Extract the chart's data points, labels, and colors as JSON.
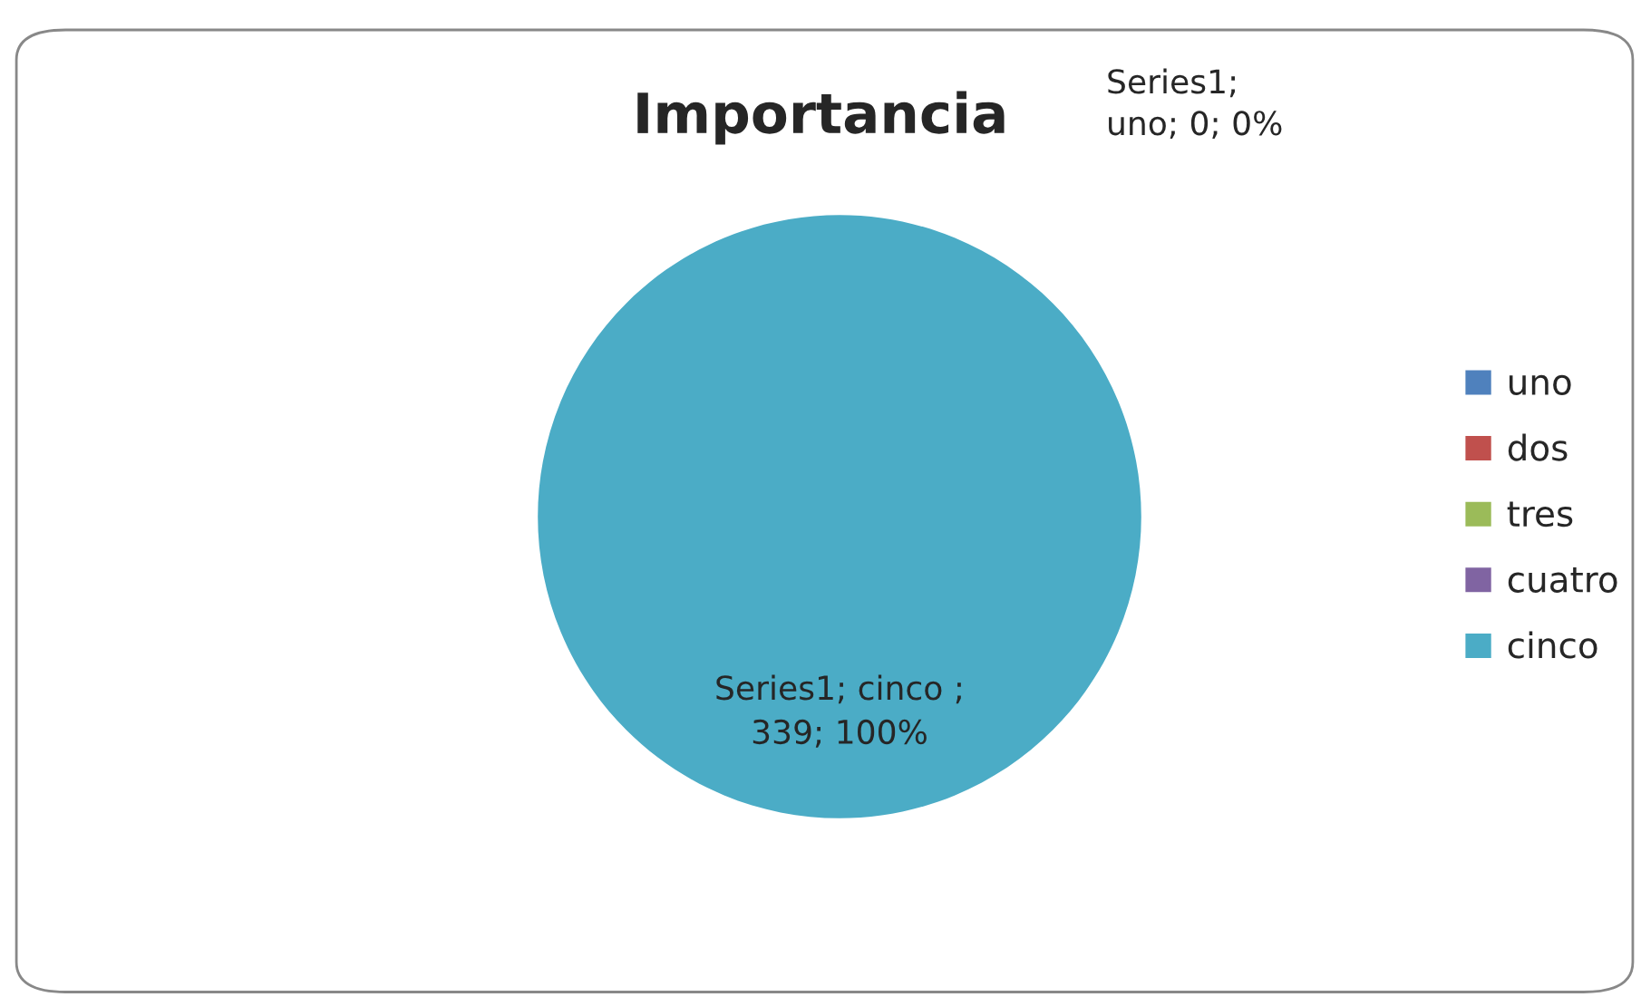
{
  "chart_data": {
    "type": "pie",
    "title": "Importancia",
    "categories": [
      "uno",
      "dos",
      "tres",
      "cuatro",
      "cinco"
    ],
    "values": [
      0,
      0,
      0,
      0,
      339
    ],
    "colors": [
      "#4f81bd",
      "#c0504d",
      "#9bbb59",
      "#8064a2",
      "#4bacc6"
    ],
    "value_labels": [
      "Series1; uno; 0; 0%",
      null,
      null,
      null,
      "Series1; cinco ; 339; 100%"
    ],
    "legend": "right"
  }
}
